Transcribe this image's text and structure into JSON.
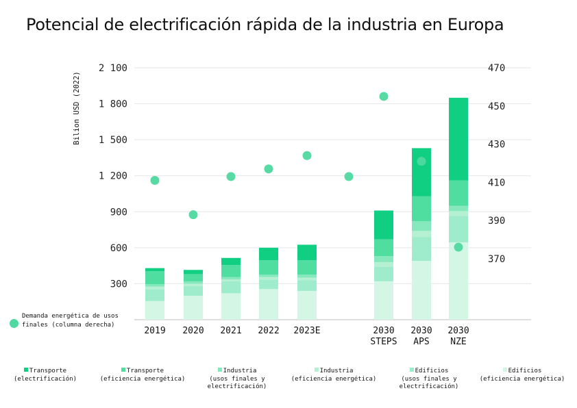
{
  "title": "Potencial de electrificación rápida de la industria en Europa",
  "colors": {
    "transporte_electrificacion": "#11cf82",
    "transporte_eficiencia": "#4fde9f",
    "industria_usos": "#86e8bd",
    "industria_eficiencia": "#b5f0d2",
    "edificios_usos": "#9eeccb",
    "edificios_eficiencia": "#d4f7e5",
    "demanda": "#4fd8a0"
  },
  "dot_legend": "Demanda energética de usos finales (columna derecha)",
  "legend": [
    {
      "label": "Transporte",
      "label2": "(electrificación)",
      "color_key": "transporte_electrificacion"
    },
    {
      "label": "Transporte",
      "label2": "(eficiencia energética)",
      "color_key": "transporte_eficiencia"
    },
    {
      "label": "Industria",
      "label2": "(usos finales y",
      "label3": "electrificación)",
      "color_key": "industria_usos"
    },
    {
      "label": "Industria",
      "label2": "(eficiencia energética)",
      "color_key": "industria_eficiencia"
    },
    {
      "label": "Edificios",
      "label2": "(usos finales y",
      "label3": "electrificación)",
      "color_key": "edificios_usos"
    },
    {
      "label": "Edificios",
      "label2": "(eficiencia energética)",
      "color_key": "edificios_eficiencia"
    }
  ],
  "chart_data": {
    "type": "bar",
    "stacked": true,
    "ylabel": "Bilion USD (2022)",
    "ylim": [
      0,
      2100
    ],
    "yticks": [
      "300",
      "600",
      "900",
      "1 200",
      "1 500",
      "1 800",
      "2 100"
    ],
    "yticks_values": [
      300,
      600,
      900,
      1200,
      1500,
      1800,
      2100
    ],
    "y2lim": [
      338,
      470
    ],
    "y2ticks": [
      "370",
      "390",
      "410",
      "430",
      "450",
      "470"
    ],
    "y2ticks_values": [
      370,
      390,
      410,
      430,
      450,
      470
    ],
    "categories": [
      {
        "label": "2019"
      },
      {
        "label": "2020"
      },
      {
        "label": "2021"
      },
      {
        "label": "2022"
      },
      {
        "label": "2023E"
      },
      {
        "label": ""
      },
      {
        "label": "2030",
        "label2": "STEPS"
      },
      {
        "label": "2030",
        "label2": "APS"
      },
      {
        "label": "2030",
        "label2": "NZE"
      }
    ],
    "series": [
      {
        "name": "Edificios (eficiencia energética)",
        "color_key": "edificios_eficiencia",
        "values": [
          155,
          200,
          220,
          255,
          240,
          null,
          320,
          490,
          645
        ]
      },
      {
        "name": "Edificios (usos finales y electrificación)",
        "color_key": "edificios_usos",
        "values": [
          100,
          80,
          100,
          80,
          90,
          null,
          120,
          200,
          220
        ]
      },
      {
        "name": "Industria (eficiencia energética)",
        "color_key": "industria_eficiencia",
        "values": [
          20,
          20,
          15,
          20,
          20,
          null,
          40,
          50,
          40
        ]
      },
      {
        "name": "Industria (usos finales y electrificación)",
        "color_key": "industria_usos",
        "values": [
          20,
          20,
          20,
          20,
          25,
          null,
          50,
          80,
          45
        ]
      },
      {
        "name": "Transporte (eficiencia energética)",
        "color_key": "transporte_eficiencia",
        "values": [
          110,
          60,
          100,
          120,
          120,
          null,
          140,
          210,
          210
        ]
      },
      {
        "name": "Transporte (electrificación)",
        "color_key": "transporte_electrificacion",
        "values": [
          25,
          35,
          60,
          105,
          130,
          null,
          240,
          400,
          690
        ]
      }
    ],
    "demanda": [
      411,
      393,
      413,
      417,
      424,
      413,
      455,
      421,
      376
    ]
  }
}
